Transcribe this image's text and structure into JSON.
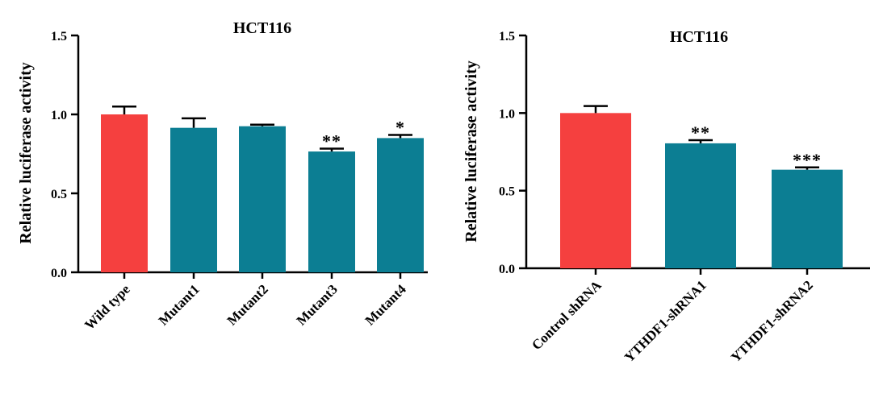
{
  "colors": {
    "control": "#f5403f",
    "treated": "#0c7e93",
    "axis": "#000000"
  },
  "chart_data": [
    {
      "type": "bar",
      "title": "HCT116",
      "ylabel": "Relative luciferase activity",
      "ylim": [
        0,
        1.5
      ],
      "yticks": [
        "0.0",
        "0.5",
        "1.0",
        "1.5"
      ],
      "categories": [
        "Wild type",
        "Mutant1",
        "Mutant2",
        "Mutant3",
        "Mutant4"
      ],
      "values": [
        1.0,
        0.915,
        0.925,
        0.765,
        0.85
      ],
      "errors": [
        0.05,
        0.06,
        0.01,
        0.018,
        0.02
      ],
      "significance": [
        "",
        "",
        "",
        "**",
        "*"
      ],
      "bar_colors": [
        "control",
        "treated",
        "treated",
        "treated",
        "treated"
      ]
    },
    {
      "type": "bar",
      "title": "HCT116",
      "ylabel": "Relative luciferase activity",
      "ylim": [
        0,
        1.5
      ],
      "yticks": [
        "0.0",
        "0.5",
        "1.0",
        "1.5"
      ],
      "categories": [
        "Control shRNA",
        "YTHDF1-shRNA1",
        "YTHDF1-shRNA2"
      ],
      "values": [
        1.0,
        0.805,
        0.635
      ],
      "errors": [
        0.045,
        0.02,
        0.015
      ],
      "significance": [
        "",
        "**",
        "***"
      ],
      "bar_colors": [
        "control",
        "treated",
        "treated"
      ]
    }
  ]
}
